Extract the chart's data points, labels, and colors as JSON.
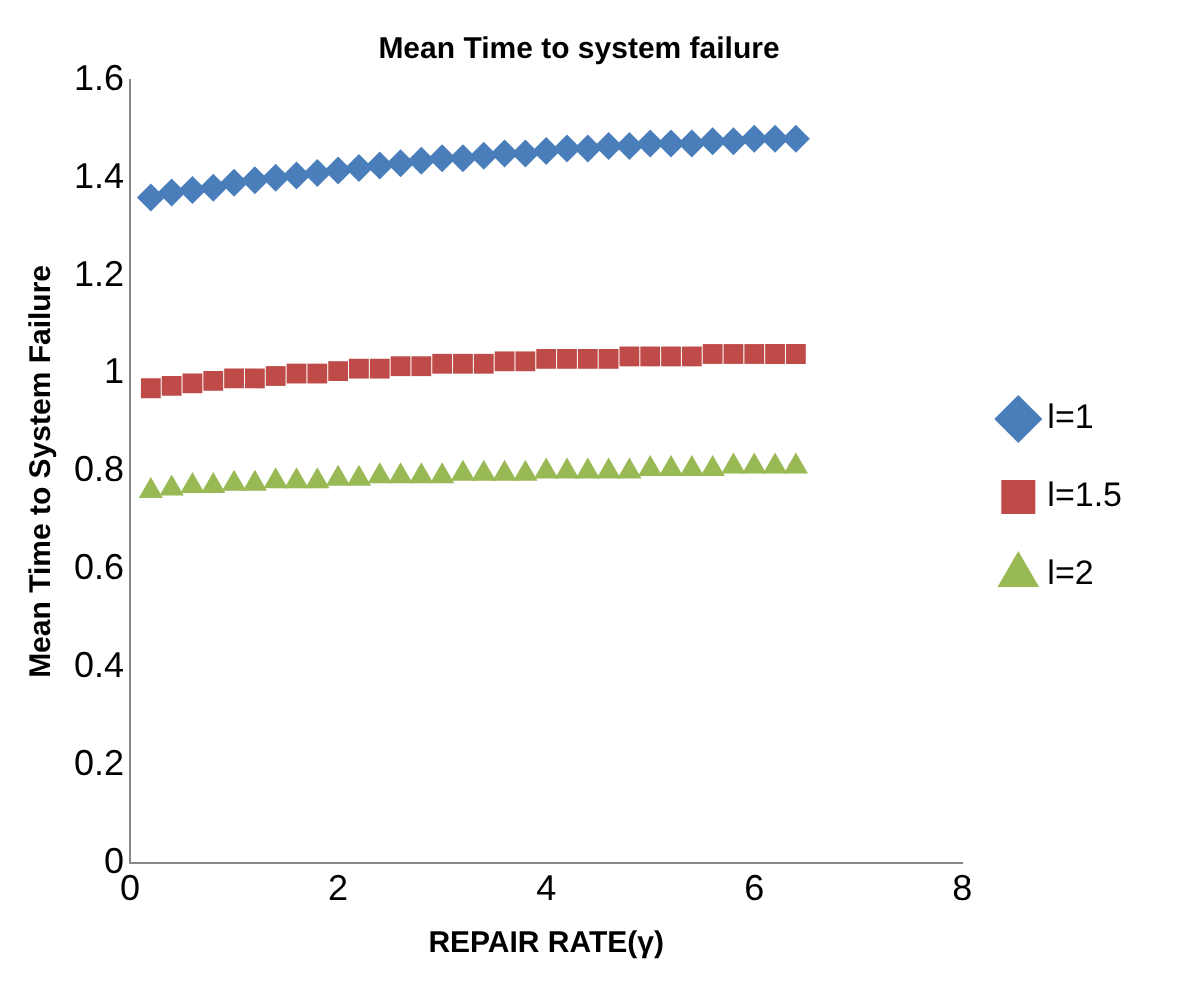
{
  "chart_data": {
    "type": "scatter",
    "title": "Mean Time to system failure",
    "xlabel": "REPAIR RATE(γ)",
    "ylabel": "Mean Time to System Failure",
    "x": [
      0.2,
      0.4,
      0.6,
      0.8,
      1.0,
      1.2,
      1.4,
      1.6,
      1.8,
      2.0,
      2.2,
      2.4,
      2.6,
      2.8,
      3.0,
      3.2,
      3.4,
      3.6,
      3.8,
      4.0,
      4.2,
      4.4,
      4.6,
      4.8,
      5.0,
      5.2,
      5.4,
      5.6,
      5.8,
      6.0,
      6.2,
      6.4
    ],
    "series": [
      {
        "name": "l=1",
        "color": "#4a7ebb",
        "marker": "diamond",
        "values": [
          1.36,
          1.37,
          1.375,
          1.38,
          1.39,
          1.395,
          1.4,
          1.405,
          1.41,
          1.415,
          1.42,
          1.425,
          1.43,
          1.435,
          1.44,
          1.44,
          1.445,
          1.45,
          1.45,
          1.455,
          1.46,
          1.46,
          1.465,
          1.465,
          1.47,
          1.47,
          1.47,
          1.475,
          1.475,
          1.48,
          1.48,
          1.48
        ]
      },
      {
        "name": "l=1.5",
        "color": "#be4b48",
        "marker": "square",
        "values": [
          0.97,
          0.975,
          0.98,
          0.985,
          0.99,
          0.99,
          0.995,
          1.0,
          1.0,
          1.005,
          1.01,
          1.01,
          1.015,
          1.015,
          1.02,
          1.02,
          1.02,
          1.025,
          1.025,
          1.03,
          1.03,
          1.03,
          1.03,
          1.035,
          1.035,
          1.035,
          1.035,
          1.04,
          1.04,
          1.04,
          1.04,
          1.04
        ]
      },
      {
        "name": "l=2",
        "color": "#98b954",
        "marker": "triangle",
        "values": [
          0.76,
          0.765,
          0.77,
          0.77,
          0.775,
          0.775,
          0.78,
          0.78,
          0.78,
          0.785,
          0.785,
          0.79,
          0.79,
          0.79,
          0.79,
          0.795,
          0.795,
          0.795,
          0.795,
          0.8,
          0.8,
          0.8,
          0.8,
          0.8,
          0.805,
          0.805,
          0.805,
          0.805,
          0.81,
          0.81,
          0.81,
          0.81
        ]
      }
    ],
    "xlim": [
      0,
      8
    ],
    "xticks": [
      0,
      2,
      4,
      6,
      8
    ],
    "ylim": [
      0,
      1.6
    ],
    "yticks": [
      0,
      0.2,
      0.4,
      0.6,
      0.8,
      1,
      1.2,
      1.4,
      1.6
    ],
    "grid": false,
    "legend": "right"
  }
}
